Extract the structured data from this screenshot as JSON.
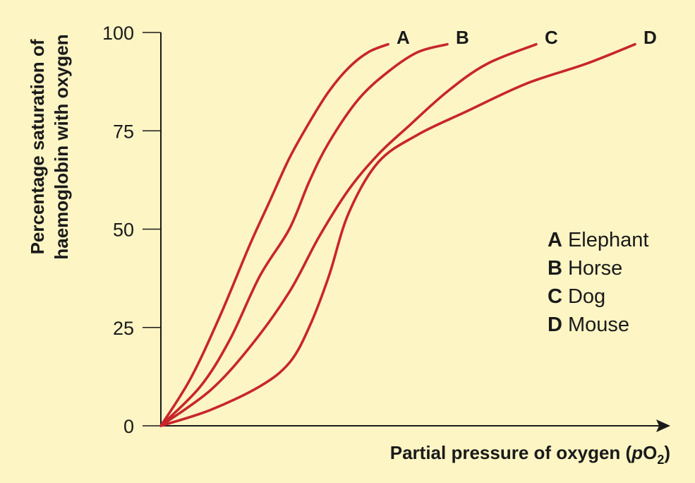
{
  "chart_data": {
    "type": "line",
    "title": "",
    "xlabel": "Partial pressure of oxygen (pO2)",
    "xlabel_parts": {
      "before": "Partial pressure of oxygen (",
      "italic": "p",
      "main": "O",
      "sub": "2",
      "after": ")"
    },
    "ylabel_lines": [
      "Percentage saturation of",
      "haemoglobin with oxygen"
    ],
    "ylim": [
      0,
      100
    ],
    "xlim": [
      0,
      100
    ],
    "yticks": [
      0,
      25,
      50,
      75,
      100
    ],
    "ytick_labels": [
      "0",
      "25",
      "50",
      "75",
      "100"
    ],
    "x_ticks_shown": false,
    "grid": false,
    "line_color": "#C8262C",
    "background": "#FDF5C4",
    "legend_position": "right",
    "series": [
      {
        "key": "A",
        "name": "Elephant",
        "x": [
          0,
          6,
          12,
          18,
          22,
          26,
          30,
          34,
          38,
          42,
          46
        ],
        "y": [
          0,
          12,
          28,
          46,
          57,
          68,
          77,
          85,
          91,
          95,
          97
        ]
      },
      {
        "key": "B",
        "name": "Horse",
        "x": [
          0,
          8,
          14,
          20,
          26,
          30,
          34,
          40,
          46,
          52,
          58
        ],
        "y": [
          0,
          10,
          22,
          38,
          50,
          62,
          72,
          83,
          90,
          95,
          97
        ]
      },
      {
        "key": "C",
        "name": "Dog",
        "x": [
          0,
          10,
          18,
          26,
          32,
          38,
          44,
          50,
          58,
          66,
          76
        ],
        "y": [
          0,
          9,
          20,
          34,
          48,
          60,
          69,
          76,
          85,
          92,
          97
        ]
      },
      {
        "key": "D",
        "name": "Mouse",
        "x": [
          0,
          10,
          20,
          26,
          30,
          34,
          38,
          44,
          52,
          62,
          74,
          86,
          96
        ],
        "y": [
          0,
          4,
          10,
          16,
          25,
          38,
          54,
          67,
          74,
          80,
          87,
          92,
          97
        ]
      }
    ]
  }
}
